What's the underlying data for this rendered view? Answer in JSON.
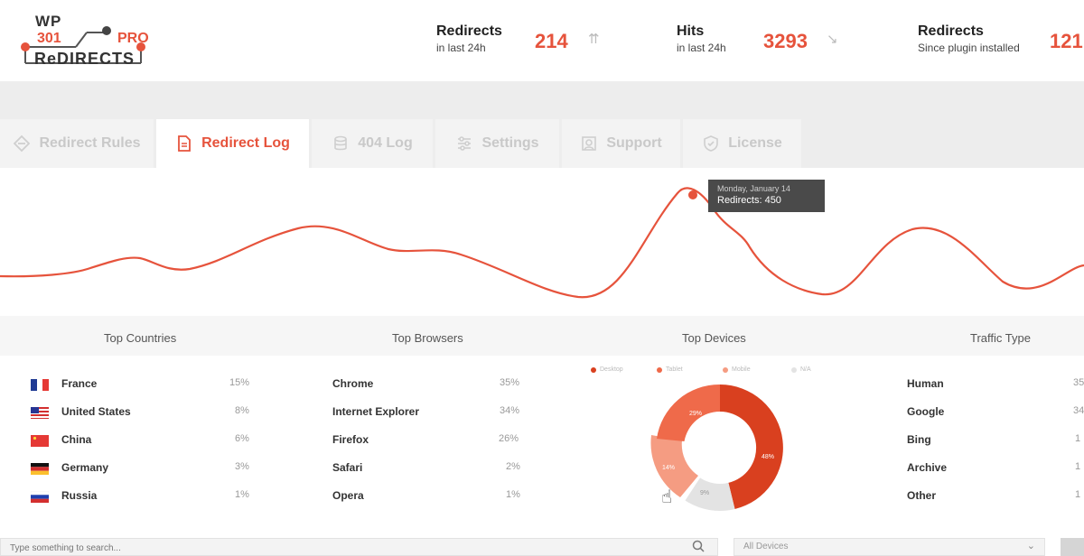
{
  "logo": {
    "wp": "WP",
    "num": "301",
    "pro": "PRO",
    "redirects": "ReDIRECTS"
  },
  "stats": [
    {
      "label": "Redirects",
      "sub": "in last 24h",
      "value": "214",
      "arrow": "⇈"
    },
    {
      "label": "Hits",
      "sub": "in last 24h",
      "value": "3293",
      "arrow": "↘"
    },
    {
      "label": "Redirects",
      "sub": "Since plugin installed",
      "value": "121"
    }
  ],
  "tabs": [
    {
      "label": "Redirect Rules",
      "icon": "redirect-rules-icon",
      "active": false
    },
    {
      "label": "Redirect Log",
      "icon": "document-icon",
      "active": true
    },
    {
      "label": "404 Log",
      "icon": "database-icon",
      "active": false
    },
    {
      "label": "Settings",
      "icon": "sliders-icon",
      "active": false
    },
    {
      "label": "Support",
      "icon": "support-icon",
      "active": false
    },
    {
      "label": "License",
      "icon": "shield-check-icon",
      "active": false
    }
  ],
  "chart": {
    "tooltip_title": "Monday, January 14",
    "tooltip_value": "Redirects: 450",
    "line_color": "#e6533c"
  },
  "sections": {
    "countries": "Top Countries",
    "browsers": "Top Browsers",
    "devices": "Top Devices",
    "traffic": "Traffic Type"
  },
  "countries": [
    {
      "name": "France",
      "pct": "15%",
      "flag": "flag-france-icon"
    },
    {
      "name": "United States",
      "pct": "8%",
      "flag": "flag-usa-icon"
    },
    {
      "name": "China",
      "pct": "6%",
      "flag": "flag-china-icon"
    },
    {
      "name": "Germany",
      "pct": "3%",
      "flag": "flag-germany-icon"
    },
    {
      "name": "Russia",
      "pct": "1%",
      "flag": "flag-russia-icon"
    }
  ],
  "browsers": [
    {
      "name": "Chrome",
      "pct": "35%"
    },
    {
      "name": "Internet Explorer",
      "pct": "34%"
    },
    {
      "name": "Firefox",
      "pct": "26%"
    },
    {
      "name": "Safari",
      "pct": "2%"
    },
    {
      "name": "Opera",
      "pct": "1%"
    }
  ],
  "devices": {
    "legend": [
      "Desktop",
      "Tablet",
      "Mobile",
      "N/A"
    ],
    "slices": [
      {
        "name": "Desktop",
        "label": "48%",
        "color": "#d9401f"
      },
      {
        "name": "Tablet",
        "label": "29%",
        "color": "#ef6a4a"
      },
      {
        "name": "Mobile",
        "label": "14%",
        "color": "#f59c82"
      },
      {
        "name": "N/A",
        "label": "9%",
        "color": "#e3e3e3"
      }
    ]
  },
  "traffic": [
    {
      "name": "Human",
      "pct": "35"
    },
    {
      "name": "Google",
      "pct": "34"
    },
    {
      "name": "Bing",
      "pct": "1"
    },
    {
      "name": "Archive",
      "pct": "1"
    },
    {
      "name": "Other",
      "pct": "1"
    }
  ],
  "search": {
    "placeholder": "Type something to search..."
  },
  "filter": {
    "selected": "All Devices"
  },
  "colors": {
    "accent": "#e6533c",
    "tab_inactive": "#c9c9c9"
  }
}
